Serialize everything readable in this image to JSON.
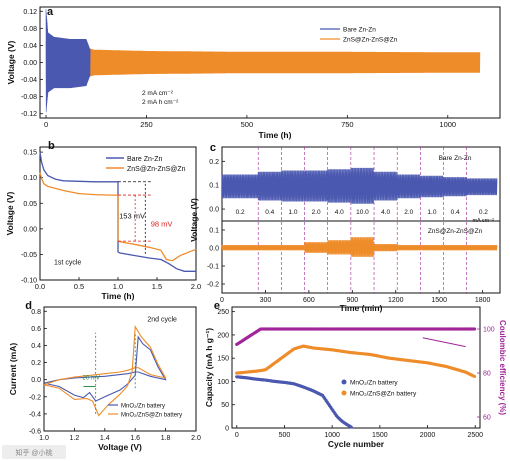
{
  "colors": {
    "blue": "#4a58b0",
    "orange": "#ef8c2a",
    "purple": "#a0249a",
    "cyclic_green": "#2a8a4a",
    "red": "#e02020"
  },
  "watermark": "知乎 @小桃",
  "panels": {
    "a": {
      "letter": "a",
      "legend": [
        "Bare Zn-Zn",
        "ZnS@Zn-ZnS@Zn"
      ],
      "conditions": [
        "2 mA cm⁻²",
        "2 mA h cm⁻²"
      ]
    },
    "b": {
      "letter": "b",
      "legend": [
        "Bare Zn-Zn",
        "ZnS@Zn-ZnS@Zn"
      ],
      "annotations": {
        "bare_overpotential": "153 mV",
        "zns_overpotential": "98 mV",
        "cycle_label": "1st cycle"
      }
    },
    "c": {
      "letter": "c",
      "top_label": "Bare Zn-Zn",
      "bottom_label": "ZnS@Zn-ZnS@Zn",
      "rate_labels": [
        "0.2",
        "0.4",
        "1.0",
        "2.0",
        "4.0",
        "10.0",
        "4.0",
        "2.0",
        "1.0",
        "0.4",
        "0.2"
      ],
      "rate_unit": "mA cm⁻²"
    },
    "d": {
      "letter": "d",
      "cycle_label": "2nd cycle",
      "gap_label": "20 mV",
      "legend": [
        "MnO₂/Zn battery",
        "MnO₂/ZnS@Zn battery"
      ]
    },
    "e": {
      "letter": "e",
      "legend": [
        "MnO₂/Zn battery",
        "MnO₂/ZnS@Zn battery"
      ]
    }
  },
  "chart_data": [
    {
      "type": "line",
      "title": "a",
      "xlabel": "Time (h)",
      "ylabel": "Voltage (V)",
      "xlim": [
        -15,
        1130
      ],
      "ylim": [
        -0.13,
        0.13
      ],
      "xticks": [
        0,
        250,
        500,
        750,
        1000
      ],
      "yticks": [
        -0.12,
        -0.08,
        -0.04,
        0.0,
        0.04,
        0.08,
        0.12
      ],
      "series": [
        {
          "name": "Bare Zn-Zn",
          "envelope": {
            "x": [
              0,
              5,
              20,
              60,
              100,
              110
            ],
            "upper": [
              0.125,
              0.07,
              0.06,
              0.055,
              0.055,
              0.03
            ],
            "lower": [
              -0.12,
              -0.07,
              -0.06,
              -0.06,
              -0.055,
              -0.03
            ]
          }
        },
        {
          "name": "ZnS@Zn-ZnS@Zn",
          "envelope": {
            "x": [
              0,
              100,
              120,
              250,
              500,
              750,
              1000,
              1080
            ],
            "upper": [
              0.05,
              0.035,
              0.03,
              0.027,
              0.025,
              0.025,
              0.024,
              0.024
            ],
            "lower": [
              -0.05,
              -0.035,
              -0.03,
              -0.027,
              -0.025,
              -0.025,
              -0.024,
              -0.024
            ]
          }
        }
      ]
    },
    {
      "type": "line",
      "title": "b",
      "xlabel": "Time (h)",
      "ylabel": "Voltage (V)",
      "xlim": [
        0,
        2.0
      ],
      "ylim": [
        -0.1,
        0.16
      ],
      "xticks": [
        0.0,
        0.5,
        1.0,
        1.5,
        2.0
      ],
      "yticks": [
        -0.1,
        -0.05,
        0.0,
        0.05,
        0.1,
        0.15
      ],
      "series": [
        {
          "name": "Bare Zn-Zn",
          "x": [
            0.0,
            0.02,
            0.05,
            0.1,
            0.2,
            0.3,
            0.5,
            0.7,
            0.9,
            1.0,
            1.0,
            1.02,
            1.2,
            1.4,
            1.55,
            1.65,
            1.75,
            1.85,
            2.0
          ],
          "y": [
            0.15,
            0.13,
            0.115,
            0.104,
            0.097,
            0.094,
            0.093,
            0.092,
            0.092,
            0.092,
            -0.045,
            -0.047,
            -0.052,
            -0.057,
            -0.06,
            -0.068,
            -0.078,
            -0.083,
            -0.083
          ]
        },
        {
          "name": "ZnS@Zn-ZnS@Zn",
          "x": [
            0.0,
            0.02,
            0.05,
            0.1,
            0.2,
            0.3,
            0.5,
            0.7,
            0.9,
            1.0,
            1.0,
            1.02,
            1.2,
            1.4,
            1.55,
            1.62,
            1.7,
            1.8,
            2.0
          ],
          "y": [
            0.11,
            0.098,
            0.088,
            0.083,
            0.079,
            0.075,
            0.069,
            0.067,
            0.066,
            0.066,
            -0.023,
            -0.025,
            -0.03,
            -0.036,
            -0.042,
            -0.06,
            -0.062,
            -0.052,
            -0.04
          ]
        }
      ]
    },
    {
      "type": "line",
      "title": "c",
      "xlabel": "Time (min)",
      "ylabel": "Voltage (V)",
      "xlim": [
        0,
        1920
      ],
      "xticks": [
        0,
        300,
        600,
        900,
        1200,
        1500,
        1800
      ],
      "yticks_top": [
        0.0,
        0.1,
        0.2
      ],
      "yticks_bottom": [
        -0.2,
        -0.1,
        0.0,
        0.1
      ],
      "segment_boundaries": [
        250,
        410,
        570,
        730,
        890,
        1050,
        1210,
        1370,
        1530,
        1690
      ],
      "rates": [
        0.2,
        0.4,
        1.0,
        2.0,
        4.0,
        10.0,
        4.0,
        2.0,
        1.0,
        0.4,
        0.2
      ],
      "series": [
        {
          "name": "Bare Zn-Zn",
          "amplitude_by_segment": [
            0.1,
            0.12,
            0.13,
            0.13,
            0.14,
            0.15,
            0.12,
            0.1,
            0.09,
            0.08,
            0.07
          ]
        },
        {
          "name": "ZnS@Zn-ZnS@Zn",
          "amplitude_by_segment": [
            0.03,
            0.03,
            0.03,
            0.06,
            0.08,
            0.11,
            0.04,
            0.03,
            0.03,
            0.03,
            0.03
          ]
        }
      ]
    },
    {
      "type": "line",
      "title": "d",
      "xlabel": "Voltage (V)",
      "ylabel": "Current (mA)",
      "xlim": [
        1.0,
        2.0
      ],
      "ylim": [
        -0.6,
        0.85
      ],
      "xticks": [
        1.0,
        1.2,
        1.4,
        1.6,
        1.8,
        2.0
      ],
      "yticks": [
        -0.6,
        -0.4,
        -0.2,
        0.0,
        0.2,
        0.4,
        0.6,
        0.8
      ],
      "series": [
        {
          "name": "MnO₂/Zn battery",
          "x": [
            1.0,
            1.1,
            1.2,
            1.26,
            1.3,
            1.34,
            1.4,
            1.5,
            1.55,
            1.6,
            1.62,
            1.65,
            1.7,
            1.75,
            1.8,
            1.7,
            1.62,
            1.6,
            1.55,
            1.5,
            1.4,
            1.3,
            1.2,
            1.1,
            1.0
          ],
          "y": [
            -0.04,
            -0.08,
            -0.18,
            -0.21,
            -0.15,
            -0.25,
            -0.2,
            -0.12,
            -0.05,
            0.05,
            0.5,
            0.42,
            0.35,
            0.15,
            0.0,
            0.04,
            0.09,
            0.09,
            0.07,
            0.06,
            0.04,
            0.03,
            0.02,
            0.0,
            -0.04
          ]
        },
        {
          "name": "MnO₂/ZnS@Zn battery",
          "x": [
            1.0,
            1.1,
            1.2,
            1.28,
            1.32,
            1.36,
            1.42,
            1.5,
            1.55,
            1.58,
            1.6,
            1.64,
            1.7,
            1.75,
            1.8,
            1.7,
            1.62,
            1.6,
            1.55,
            1.5,
            1.4,
            1.3,
            1.2,
            1.1,
            1.0
          ],
          "y": [
            -0.06,
            -0.1,
            -0.23,
            -0.22,
            -0.25,
            -0.42,
            -0.3,
            -0.17,
            -0.07,
            0.1,
            0.62,
            0.5,
            0.38,
            0.18,
            0.02,
            0.06,
            0.14,
            0.14,
            0.11,
            0.09,
            0.07,
            0.05,
            0.03,
            0.0,
            -0.06
          ]
        }
      ]
    },
    {
      "type": "scatter",
      "title": "e",
      "xlabel": "Cycle number",
      "ylabel": "Capacity (mA h g⁻¹)",
      "ylabel_right": "Coulombic efficiency (%)",
      "xlim": [
        -50,
        2550
      ],
      "ylim": [
        0,
        260
      ],
      "ylim_right": [
        55,
        110
      ],
      "xticks": [
        0,
        500,
        1000,
        1500,
        2000,
        2500
      ],
      "yticks": [
        0,
        50,
        100,
        150,
        200,
        250
      ],
      "yticks_right": [
        60,
        80,
        100
      ],
      "series": [
        {
          "name": "MnO₂/Zn battery",
          "x": [
            0,
            100,
            200,
            300,
            400,
            500,
            600,
            700,
            800,
            900,
            950,
            1000,
            1050,
            1100,
            1150,
            1200
          ],
          "y": [
            110,
            108,
            105,
            103,
            100,
            98,
            95,
            88,
            80,
            70,
            55,
            40,
            25,
            15,
            8,
            2
          ]
        },
        {
          "name": "MnO₂/ZnS@Zn battery",
          "x": [
            0,
            100,
            200,
            300,
            400,
            500,
            600,
            700,
            800,
            1000,
            1200,
            1400,
            1600,
            1800,
            2000,
            2200,
            2400,
            2500
          ],
          "y": [
            118,
            120,
            122,
            125,
            140,
            155,
            170,
            176,
            172,
            168,
            162,
            158,
            150,
            145,
            140,
            132,
            120,
            110
          ]
        },
        {
          "name": "Coulombic efficiency",
          "x": [
            0,
            250,
            500,
            750,
            1000,
            1250,
            1500,
            1750,
            2000,
            2250,
            2500
          ],
          "y": [
            93,
            100,
            100,
            100,
            100,
            100,
            100,
            100,
            100,
            100,
            100
          ]
        }
      ]
    }
  ]
}
